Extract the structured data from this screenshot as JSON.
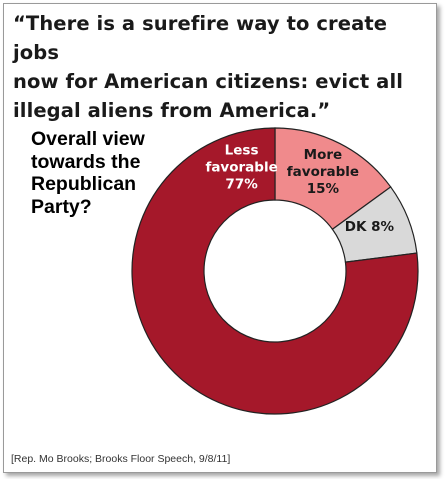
{
  "quote": {
    "lines": [
      "“There is a surefire way to create jobs",
      "now for American citizens: evict all",
      "illegal aliens from America.”"
    ]
  },
  "chart_data": {
    "type": "pie",
    "donut": true,
    "title": "Overall view towards the Republican Party?",
    "title_lines": [
      "Overall view",
      "towards the",
      "Republican",
      "Party?"
    ],
    "slices": [
      {
        "label": "More favorable",
        "label_lines": [
          "More",
          "favorable"
        ],
        "value": 15,
        "value_text": "15%",
        "color": "#f08a8c",
        "text_color": "#1a1a1a"
      },
      {
        "label": "DK",
        "label_lines": [
          "DK 8%"
        ],
        "value": 8,
        "value_text": "",
        "color": "#d9d9d9",
        "text_color": "#1a1a1a"
      },
      {
        "label": "Less favorable",
        "label_lines": [
          "Less",
          "favorable"
        ],
        "value": 77,
        "value_text": "77%",
        "color": "#a5182a",
        "text_color": "#ffffff"
      }
    ],
    "start": "top",
    "direction": "clockwise"
  },
  "source": "[Rep. Mo Brooks; Brooks Floor Speech, 9/8/11]"
}
